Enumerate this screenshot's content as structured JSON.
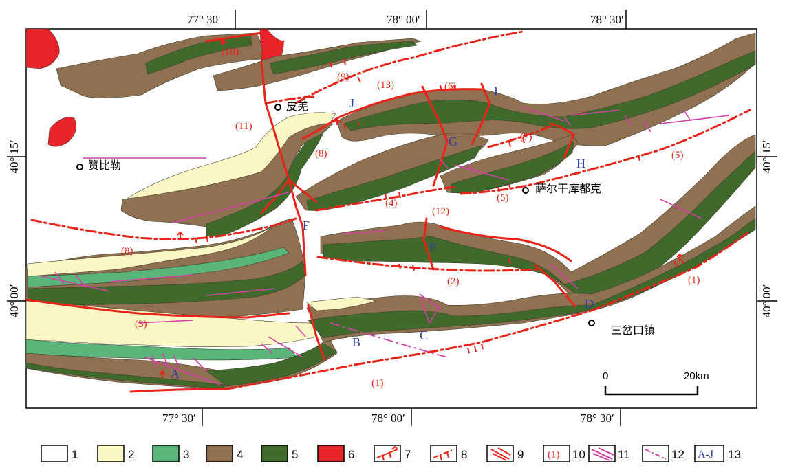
{
  "map": {
    "top_ticks": [
      "77° 30′",
      "78° 00′",
      "78° 30′"
    ],
    "bottom_ticks": [
      "77° 30′",
      "78° 00′",
      "78° 30′"
    ],
    "left_ticks": [
      "40° 15′",
      "40° 00′"
    ],
    "right_ticks": [
      "40° 15′",
      "40° 00′"
    ],
    "places": [
      "皮羌",
      "赞比勒",
      "萨尔干库都克",
      "三岔口镇"
    ],
    "fault_labels": [
      "(10)",
      "(9)",
      "(13)",
      "(6)",
      "(11)",
      "(8)",
      "(7)",
      "(5)",
      "(5)",
      "(4)",
      "(12)",
      "(8)",
      "(2)",
      "(3)",
      "(1)",
      "(1)"
    ],
    "segment_labels": [
      "A",
      "B",
      "C",
      "D",
      "E",
      "F",
      "G",
      "H",
      "I",
      "J"
    ],
    "scale": {
      "start": "0",
      "end": "20km"
    },
    "colors": {
      "unit1": "#ffffff",
      "unit2": "#fbf7c4",
      "unit3": "#5ab57a",
      "unit4": "#8f7050",
      "unit5": "#3f6a2c",
      "unit6": "#e8232a",
      "fault_red": "#e8231a",
      "fold_pink": "#d63fa8",
      "segment_blue": "#2c3ea8"
    }
  },
  "legend": {
    "items": [
      "1",
      "2",
      "3",
      "4",
      "5",
      "6",
      "7",
      "8",
      "9",
      "10",
      "11",
      "12",
      "13"
    ],
    "fault_number_sample": "(1)",
    "segment_sample": "A-J"
  }
}
